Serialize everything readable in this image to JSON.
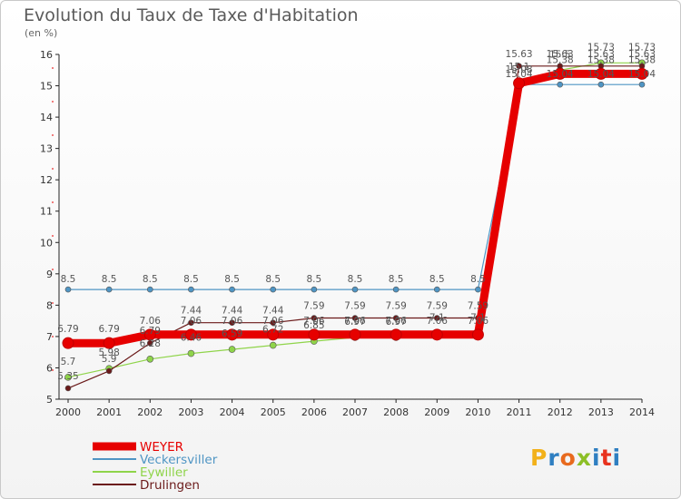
{
  "title": "Evolution du Taux de Taxe d'Habitation",
  "subtitle": "(en %)",
  "logo_text": "Proxiti",
  "chart_data": {
    "type": "line",
    "title": "Evolution du Taux de Taxe d'Habitation",
    "ylabel": "(en %)",
    "xlabel": "",
    "ylim": [
      5,
      16
    ],
    "yticks": [
      5,
      6,
      7,
      8,
      9,
      10,
      11,
      12,
      13,
      14,
      15,
      16
    ],
    "grid": false,
    "legend": "bottom-left",
    "x": [
      "2000",
      "2001",
      "2002",
      "2003",
      "2004",
      "2005",
      "2006",
      "2007",
      "2008",
      "2009",
      "2010",
      "2011",
      "2012",
      "2013",
      "2014"
    ],
    "series": [
      {
        "name": "WEYER",
        "color": "#e60000",
        "values": [
          6.79,
          6.79,
          7.06,
          7.06,
          7.06,
          7.06,
          7.06,
          7.06,
          7.06,
          7.06,
          7.06,
          15.08,
          15.38,
          15.38,
          15.38
        ],
        "labels": [
          "6.79",
          "6.79",
          "7.06",
          "7.06",
          "7.06",
          "7.06",
          "7.06",
          "7.06",
          "7.06",
          "7.06",
          "7.06",
          "15.08",
          "15.38",
          "15.38",
          "15.38"
        ]
      },
      {
        "name": "Veckersviller",
        "color": "#4f95c4",
        "values": [
          8.5,
          8.5,
          8.5,
          8.5,
          8.5,
          8.5,
          8.5,
          8.5,
          8.5,
          8.5,
          8.5,
          15.04,
          15.04,
          15.04,
          15.04
        ],
        "labels": [
          "8.5",
          "8.5",
          "8.5",
          "8.5",
          "8.5",
          "8.5",
          "8.5",
          "8.5",
          "8.5",
          "8.5",
          "8.5",
          "15.04",
          "15.04",
          "15.04",
          "15.04"
        ]
      },
      {
        "name": "Eywiller",
        "color": "#8fd44a",
        "values": [
          5.7,
          5.98,
          6.28,
          6.46,
          6.59,
          6.72,
          6.85,
          6.97,
          6.97,
          7.1,
          7.1,
          15.1,
          15.5,
          15.73,
          15.73
        ],
        "labels": [
          "5.7",
          "5.98",
          "6.28",
          "6.46",
          "6.59",
          "6.72",
          "6.85",
          "6.97",
          "6.97",
          "7.1",
          "7.1",
          "15.1",
          "15.5",
          "15.73",
          "15.73"
        ]
      },
      {
        "name": "Drulingen",
        "color": "#6b1a1a",
        "values": [
          5.35,
          5.9,
          6.79,
          7.44,
          7.44,
          7.44,
          7.59,
          7.59,
          7.59,
          7.59,
          7.59,
          15.63,
          15.63,
          15.63,
          15.63
        ],
        "labels": [
          "5.35",
          "5.9",
          "6.79",
          "7.44",
          "7.44",
          "7.44",
          "7.59",
          "7.59",
          "7.59",
          "7.59",
          "7.59",
          "15.63",
          "15.63",
          "15.63",
          "15.63"
        ]
      }
    ]
  }
}
